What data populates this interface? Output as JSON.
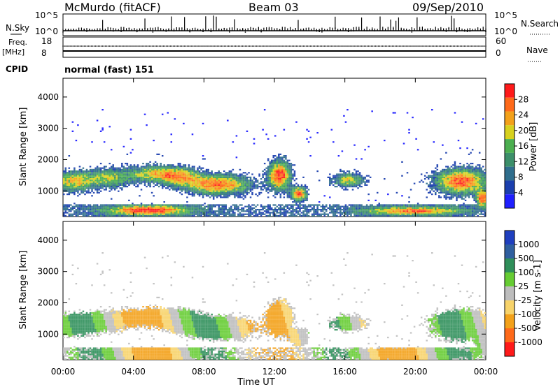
{
  "header": {
    "site": "McMurdo (fitACF)",
    "beam": "Beam 03",
    "date": "09/Sep/2010"
  },
  "top_strip": {
    "left_label": "N.Sky",
    "right_label": "N.Search",
    "tick_top": "10^5",
    "tick_bottom": "10^0"
  },
  "freq_strip": {
    "left_label_1": "Freq.",
    "left_label_2": "[MHz]",
    "left_ticks": [
      "18",
      "8"
    ],
    "right_label": "Nave",
    "right_ticks": [
      "60",
      "0"
    ]
  },
  "cpid": {
    "label": "CPID",
    "value": "normal (fast) 151"
  },
  "x_axis": {
    "label": "Time UT",
    "ticks": [
      "00:00",
      "04:00",
      "08:00",
      "12:00",
      "16:00",
      "20:00",
      "00:00"
    ]
  },
  "colors": {
    "power": [
      "#1f1fff",
      "#1b3fae",
      "#2f6e8d",
      "#3c8f6a",
      "#4caf50",
      "#d7d11e",
      "#f3a11a",
      "#ff6a1a",
      "#ff1a1a"
    ],
    "velocity": [
      "#ff1a1a",
      "#ff6a1a",
      "#f3a11a",
      "#f7d36a",
      "#bdbdbd",
      "#66cc33",
      "#2f8f5a",
      "#2f5f9f",
      "#1f3fbf"
    ]
  },
  "chart_data": [
    {
      "type": "heatmap",
      "title": "",
      "xlabel": "Time UT",
      "ylabel": "Slant Range [km]",
      "xlim": [
        0,
        24
      ],
      "ylim": [
        180,
        4600
      ],
      "y_ticks": [
        1000,
        2000,
        3000,
        4000
      ],
      "colorbar": {
        "label": "Power [dB]",
        "ticks": [
          4,
          8,
          12,
          16,
          20,
          24,
          28
        ]
      }
    },
    {
      "type": "heatmap",
      "title": "",
      "xlabel": "Time UT",
      "ylabel": "Slant Range [km]",
      "xlim": [
        0,
        24
      ],
      "ylim": [
        180,
        4600
      ],
      "y_ticks": [
        1000,
        2000,
        3000,
        4000
      ],
      "colorbar": {
        "label": "Velocity [m s-1]",
        "ticks": [
          1000,
          500,
          100,
          25,
          -25,
          -100,
          -500,
          -1000
        ]
      }
    }
  ]
}
